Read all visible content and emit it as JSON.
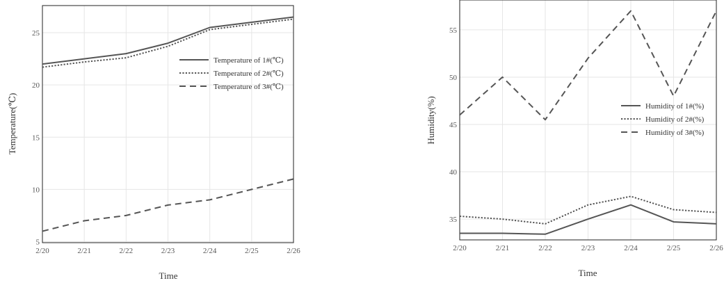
{
  "chart_data": [
    {
      "type": "line",
      "xlabel": "Time",
      "ylabel": "Temperature(℃)",
      "categories": [
        "2/20",
        "2/21",
        "2/22",
        "2/23",
        "2/24",
        "2/25",
        "2/26"
      ],
      "yticks": [
        5,
        10,
        15,
        20,
        25
      ],
      "ylim": [
        4.9,
        27.6
      ],
      "grid": true,
      "legend_position": "right",
      "series": [
        {
          "name": "Temperature of 1#(℃)",
          "style": "solid",
          "values": [
            22.0,
            22.5,
            23.0,
            24.0,
            25.5,
            26.0,
            26.5
          ]
        },
        {
          "name": "Temperature of 2#(℃)",
          "style": "dotted",
          "values": [
            21.7,
            22.2,
            22.6,
            23.7,
            25.3,
            25.8,
            26.3
          ]
        },
        {
          "name": "Temperature of 3#(℃)",
          "style": "dashed",
          "values": [
            6.0,
            7.0,
            7.5,
            8.5,
            9.0,
            10.0,
            11.0
          ]
        }
      ]
    },
    {
      "type": "line",
      "xlabel": "Time",
      "ylabel": "Humidity(%)",
      "categories": [
        "2/20",
        "2/21",
        "2/22",
        "2/23",
        "2/24",
        "2/25",
        "2/26"
      ],
      "yticks": [
        35,
        40,
        45,
        50,
        55
      ],
      "ylim": [
        32.8,
        58.3
      ],
      "grid": true,
      "legend_position": "right",
      "series": [
        {
          "name": "Humidity of 1#(%)",
          "style": "solid",
          "values": [
            33.5,
            33.5,
            33.4,
            35.0,
            36.5,
            34.7,
            34.5
          ]
        },
        {
          "name": "Humidity of 2#(%)",
          "style": "dotted",
          "values": [
            35.3,
            35.0,
            34.5,
            36.5,
            37.4,
            36.0,
            35.7
          ]
        },
        {
          "name": "Humidity of 3#(%)",
          "style": "dashed",
          "values": [
            46.0,
            50.0,
            45.5,
            52.0,
            57.0,
            48.0,
            57.0
          ]
        }
      ]
    }
  ]
}
